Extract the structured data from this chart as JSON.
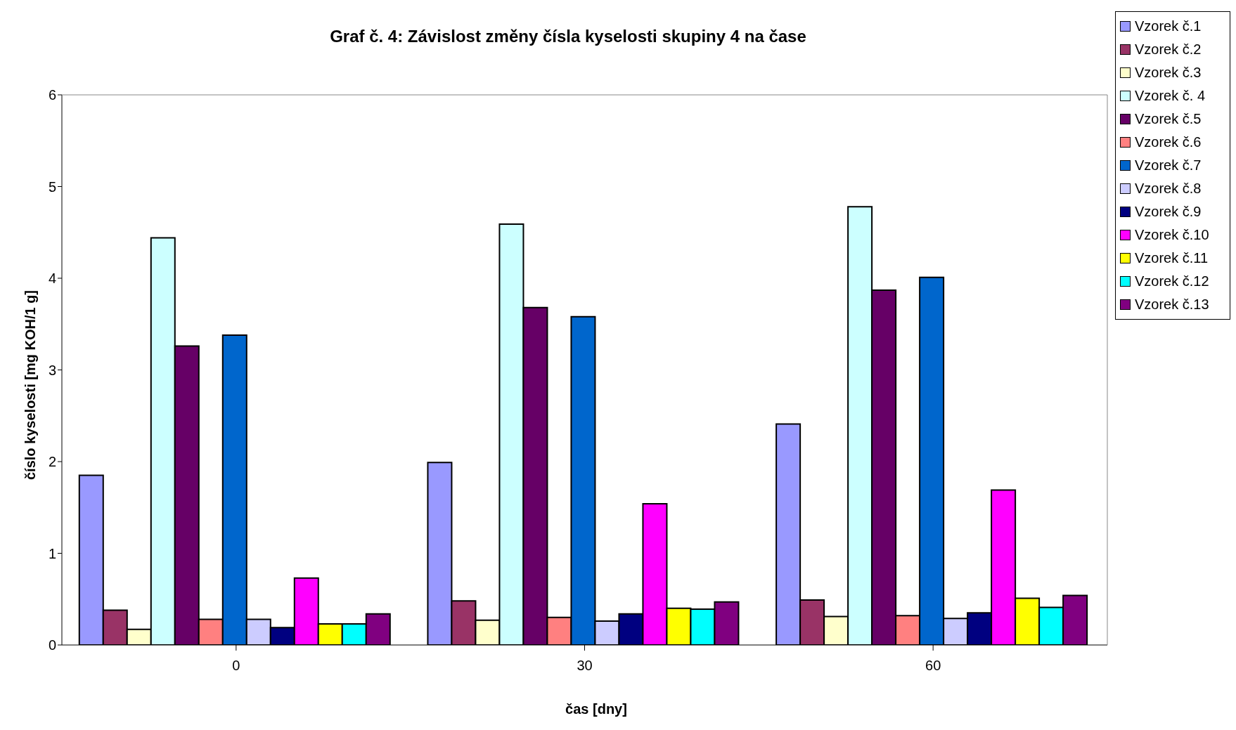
{
  "chart_data": {
    "type": "bar",
    "title": "Graf č. 4: Závislost změny čísla kyselosti skupiny 4 na čase",
    "xlabel": "čas [dny]",
    "ylabel": "číslo kyselosti [mg KOH/1 g]",
    "categories": [
      "0",
      "30",
      "60"
    ],
    "series": [
      {
        "name": "Vzorek č.1",
        "color": "#9999ff",
        "values": [
          1.85,
          1.99,
          2.41
        ]
      },
      {
        "name": "Vzorek č.2",
        "color": "#993366",
        "values": [
          0.38,
          0.48,
          0.49
        ]
      },
      {
        "name": "Vzorek č.3",
        "color": "#ffffcc",
        "values": [
          0.17,
          0.27,
          0.31
        ]
      },
      {
        "name": "Vzorek č. 4",
        "color": "#ccffff",
        "values": [
          4.44,
          4.59,
          4.78
        ]
      },
      {
        "name": "Vzorek č.5",
        "color": "#660066",
        "values": [
          3.26,
          3.68,
          3.87
        ]
      },
      {
        "name": "Vzorek č.6",
        "color": "#ff8080",
        "values": [
          0.28,
          0.3,
          0.32
        ]
      },
      {
        "name": "Vzorek č.7",
        "color": "#0066cc",
        "values": [
          3.38,
          3.58,
          4.01
        ]
      },
      {
        "name": "Vzorek č.8",
        "color": "#ccccff",
        "values": [
          0.28,
          0.26,
          0.29
        ]
      },
      {
        "name": "Vzorek č.9",
        "color": "#000080",
        "values": [
          0.19,
          0.34,
          0.35
        ]
      },
      {
        "name": "Vzorek č.10",
        "color": "#ff00ff",
        "values": [
          0.73,
          1.54,
          1.69
        ]
      },
      {
        "name": "Vzorek č.11",
        "color": "#ffff00",
        "values": [
          0.23,
          0.4,
          0.51
        ]
      },
      {
        "name": "Vzorek č.12",
        "color": "#00ffff",
        "values": [
          0.23,
          0.39,
          0.41
        ]
      },
      {
        "name": "Vzorek č.13",
        "color": "#800080",
        "values": [
          0.34,
          0.47,
          0.54
        ]
      }
    ],
    "ylim": [
      0,
      6
    ],
    "yticks": [
      0,
      1,
      2,
      3,
      4,
      5,
      6
    ],
    "legend": "top right"
  }
}
